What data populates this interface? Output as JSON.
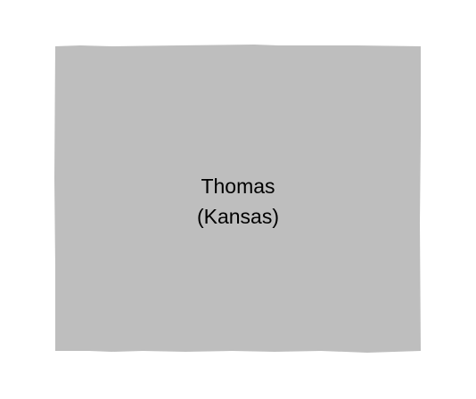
{
  "map": {
    "region_name": "Thomas",
    "region_state": "(Kansas)",
    "colors": {
      "region_fill": "#bebebe",
      "background": "#ffffff",
      "label": "#000000"
    }
  }
}
